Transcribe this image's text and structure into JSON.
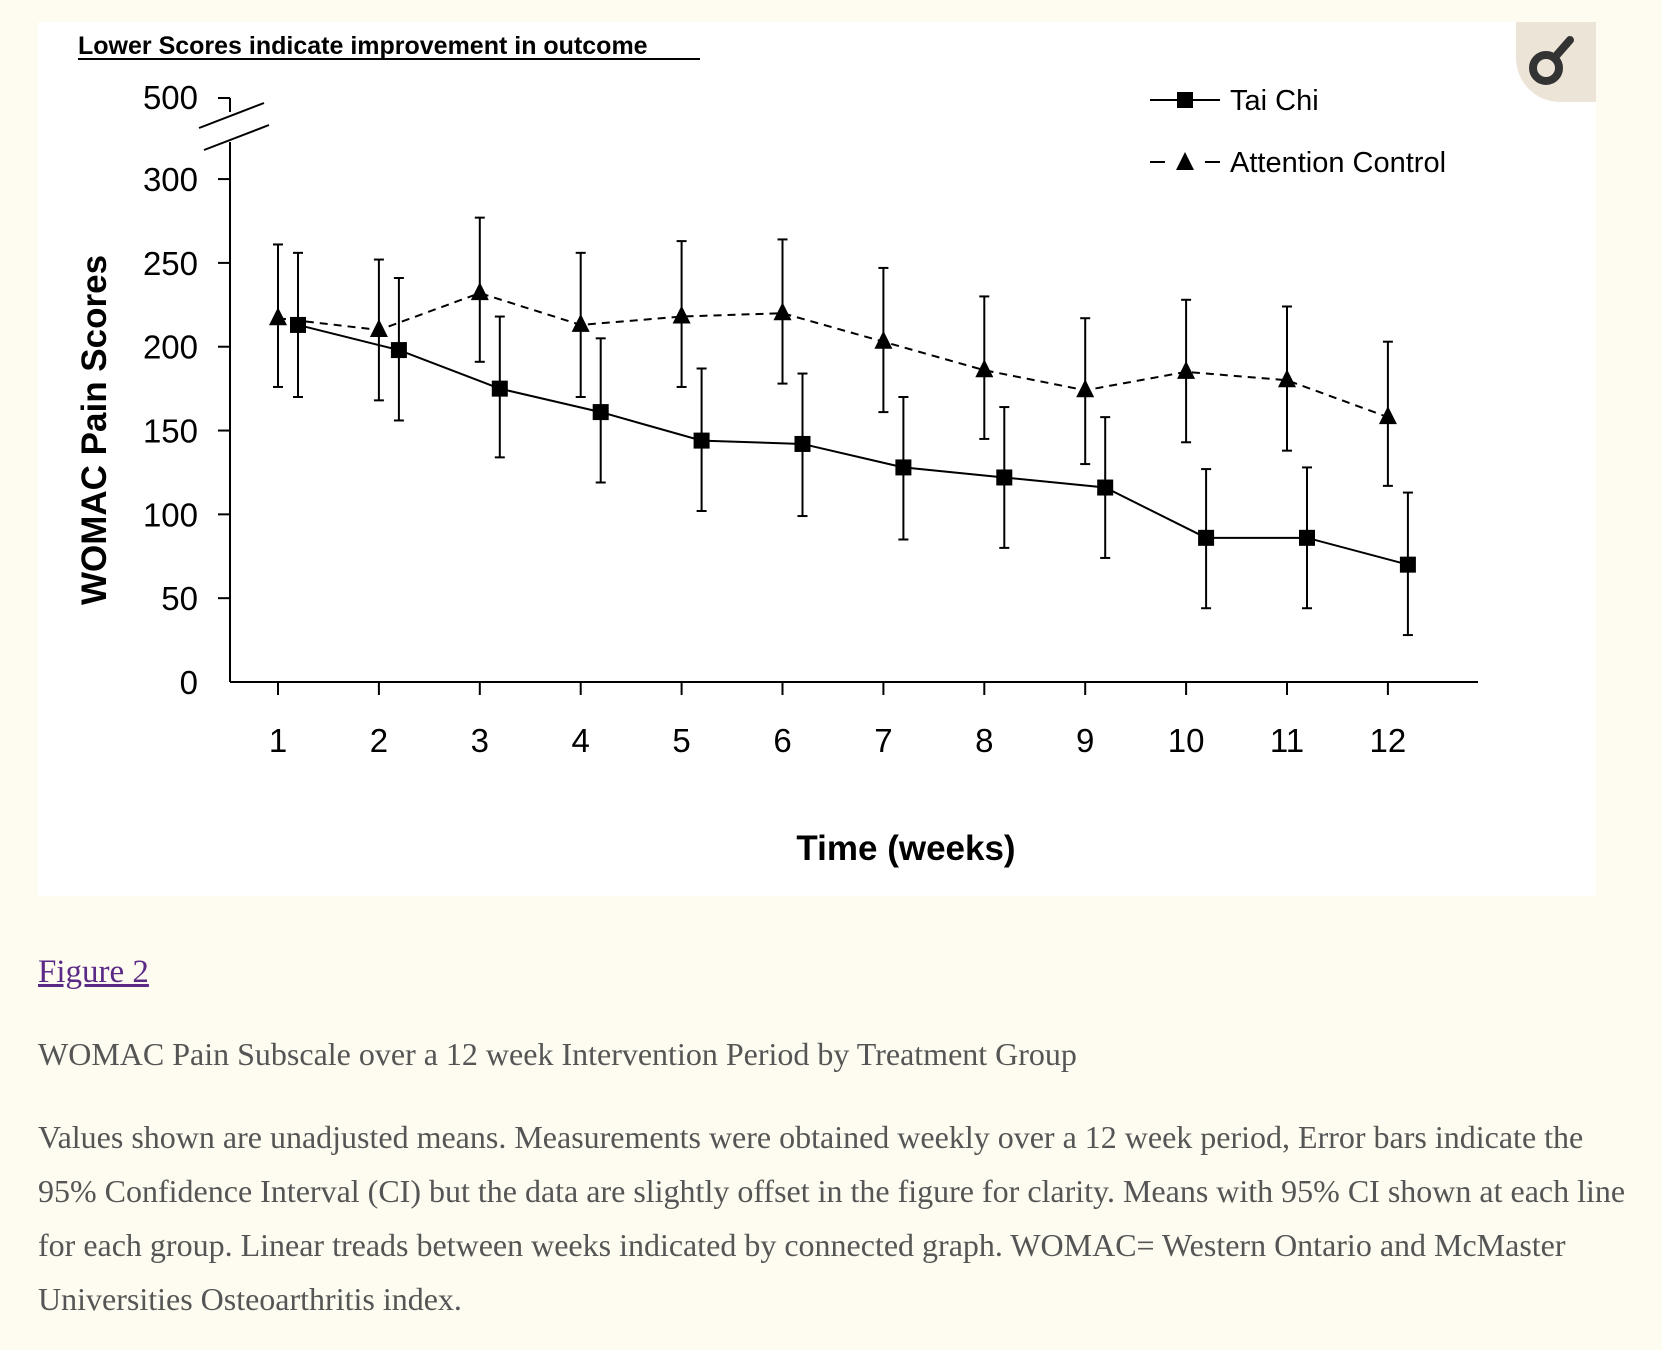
{
  "figure_link": "Figure 2",
  "caption_title": "WOMAC Pain Subscale over a 12 week Intervention Period by Treatment Group",
  "caption_body": "Values shown are unadjusted means. Measurements were obtained weekly over a 12 week period, Error bars indicate the 95% Confidence Interval (CI) but the data are slightly offset in the figure for clarity. Means with 95% CI shown at each line for each group. Linear treads between weeks indicated by connected graph. WOMAC= Western Ontario and McMaster Universities Osteoarthritis index.",
  "expand_icon": "magnifier-icon",
  "chart_data": {
    "type": "line",
    "annotation": "Lower Scores indicate improvement in outcome",
    "xlabel": "Time (weeks)",
    "ylabel": "WOMAC Pain Scores",
    "x": [
      1,
      2,
      3,
      4,
      5,
      6,
      7,
      8,
      9,
      10,
      11,
      12
    ],
    "x_tick_labels": [
      "1",
      "2",
      "3",
      "4",
      "5",
      "6",
      "7",
      "8",
      "9",
      "10",
      "11",
      "12"
    ],
    "y_tick_labels": [
      "0",
      "50",
      "100",
      "150",
      "200",
      "250",
      "300",
      "500"
    ],
    "y_ticks": [
      0,
      50,
      100,
      150,
      200,
      250,
      300,
      500
    ],
    "y_axis_break": [
      300,
      500
    ],
    "ylim": [
      0,
      500
    ],
    "grid": false,
    "legend_position": "top-right",
    "series": [
      {
        "name": "Tai Chi",
        "marker": "square",
        "line_style": "solid",
        "values": [
          213,
          198,
          175,
          161,
          144,
          142,
          128,
          122,
          116,
          86,
          86,
          70
        ],
        "ci_upper": [
          256,
          241,
          218,
          205,
          187,
          184,
          170,
          164,
          158,
          127,
          128,
          113
        ],
        "ci_lower": [
          170,
          156,
          134,
          119,
          102,
          99,
          85,
          80,
          74,
          44,
          44,
          28
        ]
      },
      {
        "name": "Attention Control",
        "marker": "triangle",
        "line_style": "dashed",
        "values": [
          217,
          210,
          232,
          213,
          218,
          220,
          203,
          186,
          174,
          185,
          180,
          158
        ],
        "ci_upper": [
          261,
          252,
          277,
          256,
          263,
          264,
          247,
          230,
          217,
          228,
          224,
          203
        ],
        "ci_lower": [
          176,
          168,
          191,
          170,
          176,
          178,
          161,
          145,
          130,
          143,
          138,
          117
        ]
      }
    ],
    "colors": {
      "series_line": "#000000",
      "background": "#ffffff"
    }
  }
}
